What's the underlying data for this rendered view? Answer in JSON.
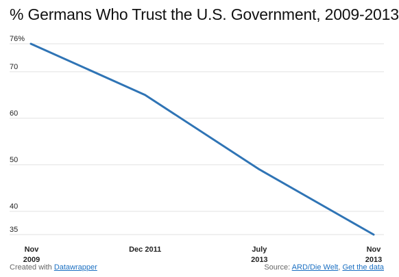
{
  "colors": {
    "line": "#2f74b5",
    "grid": "#e2e2e2"
  },
  "chart_data": {
    "type": "line",
    "title": "% Germans Who Trust the U.S. Government, 2009-2013",
    "categories": [
      "Nov 2009",
      "Dec 2011",
      "July 2013",
      "Nov 2013"
    ],
    "x_tick_labels": [
      {
        "line1": "Nov",
        "line2": "2009"
      },
      {
        "line1": "Dec 2011",
        "line2": ""
      },
      {
        "line1": "July",
        "line2": "2013"
      },
      {
        "line1": "Nov",
        "line2": "2013"
      }
    ],
    "series": [
      {
        "values": [
          76,
          65,
          49,
          35
        ]
      }
    ],
    "y_ticks": [
      35,
      40,
      50,
      60,
      70,
      76
    ],
    "y_tick_labels": [
      "35",
      "40",
      "50",
      "60",
      "70",
      "76%"
    ],
    "ylim": [
      35,
      76
    ],
    "grid": true,
    "xlabel": "",
    "ylabel": ""
  },
  "footer": {
    "created_prefix": "Created with ",
    "created_link": "Datawrapper",
    "source_prefix": "Source: ",
    "source_link": "ARD/Die Welt",
    "separator": ", ",
    "data_link": "Get the data"
  }
}
